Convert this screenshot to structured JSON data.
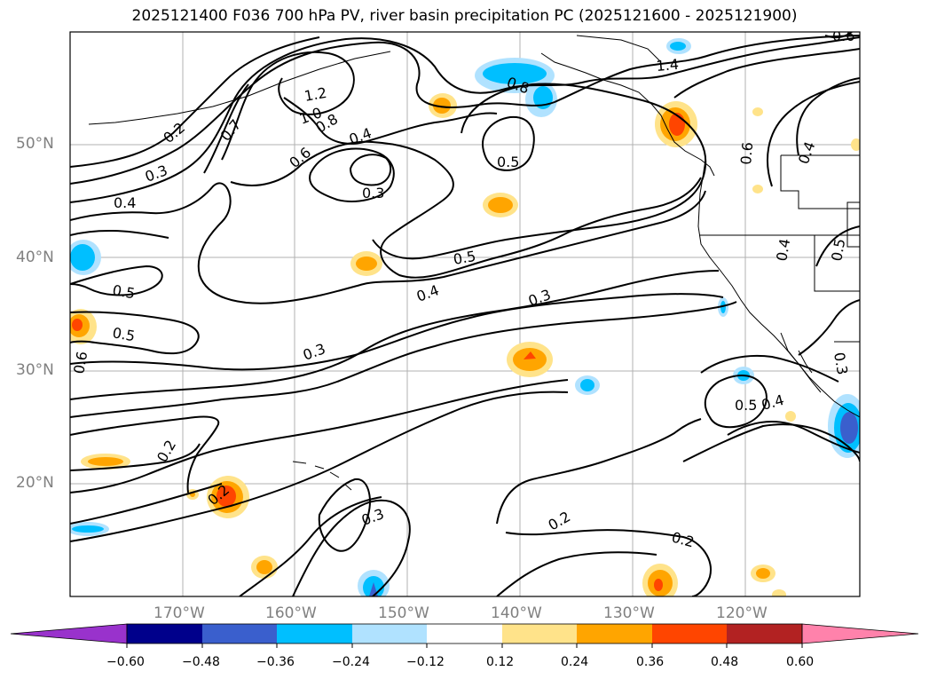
{
  "title": "2025121400 F036 700 hPa PV, river basin precipitation PC (2025121600 - 2025121900)",
  "lat_labels": [
    "50°N",
    "40°N",
    "30°N",
    "20°N"
  ],
  "lon_labels": [
    "170°W",
    "160°W",
    "150°W",
    "140°W",
    "130°W",
    "120°W"
  ],
  "contour_labels": [
    "1.2",
    "1.0",
    "0.8",
    "0.7",
    "0.6",
    "0.4",
    "0.3",
    "0.2",
    "0.5",
    "1.4",
    "0.8",
    "0.5",
    "0.3",
    "0.4",
    "0.5",
    "0.3",
    "0.4",
    "0.5",
    "0.6",
    "0.3",
    "0.2",
    "0.2",
    "0.3",
    "0.2",
    "0.2",
    "0.5",
    "0.4",
    "0.3",
    "0.4",
    "0.6",
    "0.4",
    "0.5",
    "0.6"
  ],
  "colorbar": {
    "ticks": [
      "−0.60",
      "−0.48",
      "−0.36",
      "−0.24",
      "−0.12",
      "0.12",
      "0.24",
      "0.36",
      "0.48",
      "0.60"
    ],
    "colors": [
      "#9932CC",
      "#00008B",
      "#3A5FCD",
      "#00BFFF",
      "#B0E2FF",
      "#FFFFFF",
      "#FFE38A",
      "#FFA500",
      "#FF4500",
      "#B22222",
      "#FF82AB"
    ]
  }
}
